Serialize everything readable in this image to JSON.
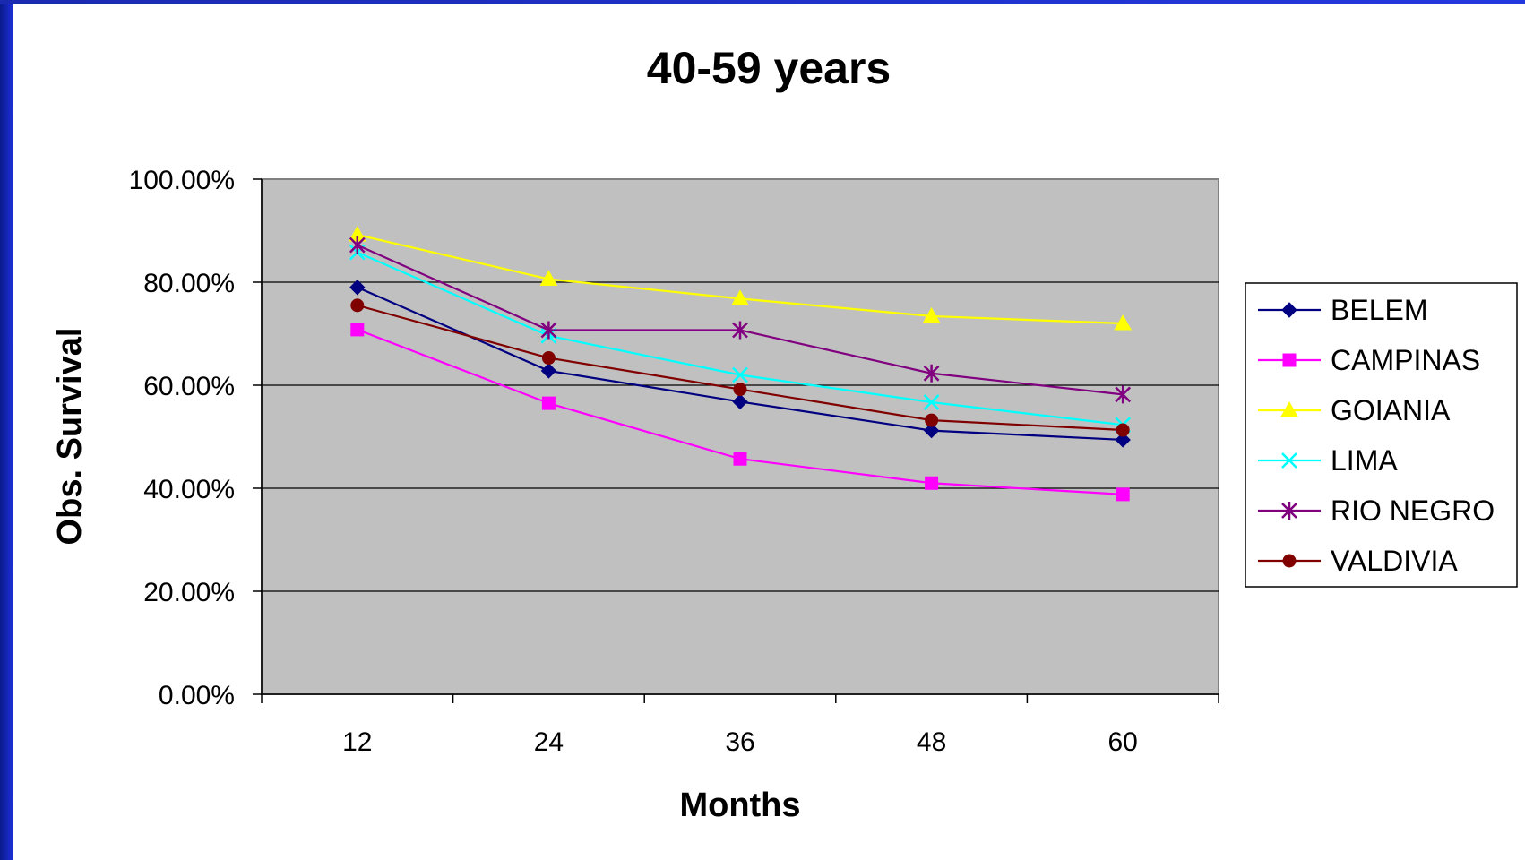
{
  "chart_data": {
    "type": "line",
    "title": "40-59 years",
    "xlabel": "Months",
    "ylabel": "Obs. Survival",
    "categories": [
      "12",
      "24",
      "36",
      "48",
      "60"
    ],
    "ylim": [
      0,
      100
    ],
    "yticks": [
      "0.00%",
      "20.00%",
      "40.00%",
      "60.00%",
      "80.00%",
      "100.00%"
    ],
    "grid": true,
    "legend_position": "right",
    "plot_background": "#c0c0c0",
    "series": [
      {
        "name": "BELEM",
        "color": "#000080",
        "marker": "diamond",
        "values": [
          79.0,
          62.8,
          56.8,
          51.2,
          49.4
        ]
      },
      {
        "name": "CAMPINAS",
        "color": "#ff00ff",
        "marker": "square",
        "values": [
          70.8,
          56.5,
          45.7,
          41.0,
          38.8
        ]
      },
      {
        "name": "GOIANIA",
        "color": "#ffff00",
        "marker": "triangle",
        "values": [
          89.2,
          80.6,
          76.8,
          73.4,
          72.0
        ]
      },
      {
        "name": "LIMA",
        "color": "#00ffff",
        "marker": "x",
        "values": [
          85.8,
          69.6,
          62.0,
          56.7,
          52.3
        ]
      },
      {
        "name": "RIO NEGRO",
        "color": "#800080",
        "marker": "asterisk",
        "values": [
          87.2,
          70.7,
          70.7,
          62.3,
          58.2
        ]
      },
      {
        "name": "VALDIVIA",
        "color": "#800000",
        "marker": "circle",
        "values": [
          75.5,
          65.3,
          59.2,
          53.2,
          51.3
        ]
      }
    ]
  }
}
